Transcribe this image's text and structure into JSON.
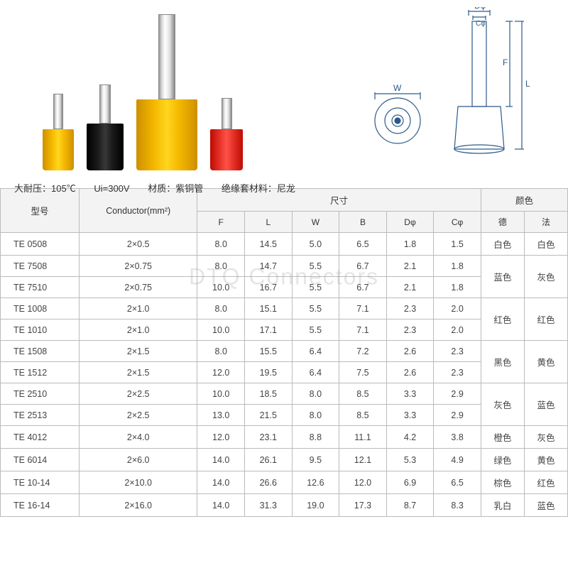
{
  "watermark": "DTQ Connectors",
  "specs": {
    "temp_label": "大耐压：",
    "temp_value": "105℃",
    "ui_label": "Ui=",
    "ui_value": "300V",
    "material_label": "材质：",
    "material_value": "紫铜管",
    "insulation_label": "绝缘套材料：",
    "insulation_value": "尼龙"
  },
  "ferrule_render": [
    {
      "tube_w": 14,
      "tube_h": 50,
      "body_w": 44,
      "body_h": 58,
      "color": "#f5b800"
    },
    {
      "tube_w": 16,
      "tube_h": 55,
      "body_w": 52,
      "body_h": 66,
      "color": "#1a1a1a"
    },
    {
      "tube_w": 24,
      "tube_h": 120,
      "body_w": 86,
      "body_h": 100,
      "color": "#f5b800"
    },
    {
      "tube_w": 15,
      "tube_h": 44,
      "body_w": 46,
      "body_h": 58,
      "color": "#e6332a"
    }
  ],
  "diagram": {
    "labels": {
      "d": "Dφ",
      "c": "Cφ",
      "w": "W",
      "l": "L",
      "f": "F"
    },
    "stroke": "#2a5a8a"
  },
  "table": {
    "headers": {
      "model": "型号",
      "conductor": "Conductor(mm²)",
      "dimensions": "尺寸",
      "color": "颜色",
      "sub": [
        "F",
        "L",
        "W",
        "B",
        "Dφ",
        "Cφ",
        "德",
        "法"
      ]
    },
    "rows": [
      {
        "model": "TE 0508",
        "cond": "2×0.5",
        "f": "8.0",
        "l": "14.5",
        "w": "5.0",
        "b": "6.5",
        "d": "1.8",
        "c": "1.5",
        "de": "白色",
        "fr": "白色",
        "de_span": 1,
        "fr_span": 1
      },
      {
        "model": "TE 7508",
        "cond": "2×0.75",
        "f": "8.0",
        "l": "14.7",
        "w": "5.5",
        "b": "6.7",
        "d": "2.1",
        "c": "1.8",
        "de": "蓝色",
        "fr": "灰色",
        "de_span": 2,
        "fr_span": 2
      },
      {
        "model": "TE 7510",
        "cond": "2×0.75",
        "f": "10.0",
        "l": "16.7",
        "w": "5.5",
        "b": "6.7",
        "d": "2.1",
        "c": "1.8"
      },
      {
        "model": "TE 1008",
        "cond": "2×1.0",
        "f": "8.0",
        "l": "15.1",
        "w": "5.5",
        "b": "7.1",
        "d": "2.3",
        "c": "2.0",
        "de": "红色",
        "fr": "红色",
        "de_span": 2,
        "fr_span": 2
      },
      {
        "model": "TE 1010",
        "cond": "2×1.0",
        "f": "10.0",
        "l": "17.1",
        "w": "5.5",
        "b": "7.1",
        "d": "2.3",
        "c": "2.0"
      },
      {
        "model": "TE 1508",
        "cond": "2×1.5",
        "f": "8.0",
        "l": "15.5",
        "w": "6.4",
        "b": "7.2",
        "d": "2.6",
        "c": "2.3",
        "de": "黑色",
        "fr": "黄色",
        "de_span": 2,
        "fr_span": 2
      },
      {
        "model": "TE 1512",
        "cond": "2×1.5",
        "f": "12.0",
        "l": "19.5",
        "w": "6.4",
        "b": "7.5",
        "d": "2.6",
        "c": "2.3"
      },
      {
        "model": "TE 2510",
        "cond": "2×2.5",
        "f": "10.0",
        "l": "18.5",
        "w": "8.0",
        "b": "8.5",
        "d": "3.3",
        "c": "2.9",
        "de": "灰色",
        "fr": "蓝色",
        "de_span": 2,
        "fr_span": 2
      },
      {
        "model": "TE 2513",
        "cond": "2×2.5",
        "f": "13.0",
        "l": "21.5",
        "w": "8.0",
        "b": "8.5",
        "d": "3.3",
        "c": "2.9"
      },
      {
        "model": "TE 4012",
        "cond": "2×4.0",
        "f": "12.0",
        "l": "23.1",
        "w": "8.8",
        "b": "11.1",
        "d": "4.2",
        "c": "3.8",
        "de": "橙色",
        "fr": "灰色",
        "de_span": 1,
        "fr_span": 1
      },
      {
        "model": "TE 6014",
        "cond": "2×6.0",
        "f": "14.0",
        "l": "26.1",
        "w": "9.5",
        "b": "12.1",
        "d": "5.3",
        "c": "4.9",
        "de": "绿色",
        "fr": "黄色",
        "de_span": 1,
        "fr_span": 1
      },
      {
        "model": "TE 10-14",
        "cond": "2×10.0",
        "f": "14.0",
        "l": "26.6",
        "w": "12.6",
        "b": "12.0",
        "d": "6.9",
        "c": "6.5",
        "de": "棕色",
        "fr": "红色",
        "de_span": 1,
        "fr_span": 1
      },
      {
        "model": "TE 16-14",
        "cond": "2×16.0",
        "f": "14.0",
        "l": "31.3",
        "w": "19.0",
        "b": "17.3",
        "d": "8.7",
        "c": "8.3",
        "de": "乳白",
        "fr": "蓝色",
        "de_span": 1,
        "fr_span": 1
      }
    ]
  },
  "colors": {
    "border": "#bbbbbb",
    "header_bg": "#f3f3f3",
    "text": "#444444",
    "diagram_stroke": "#2a5a8a"
  }
}
